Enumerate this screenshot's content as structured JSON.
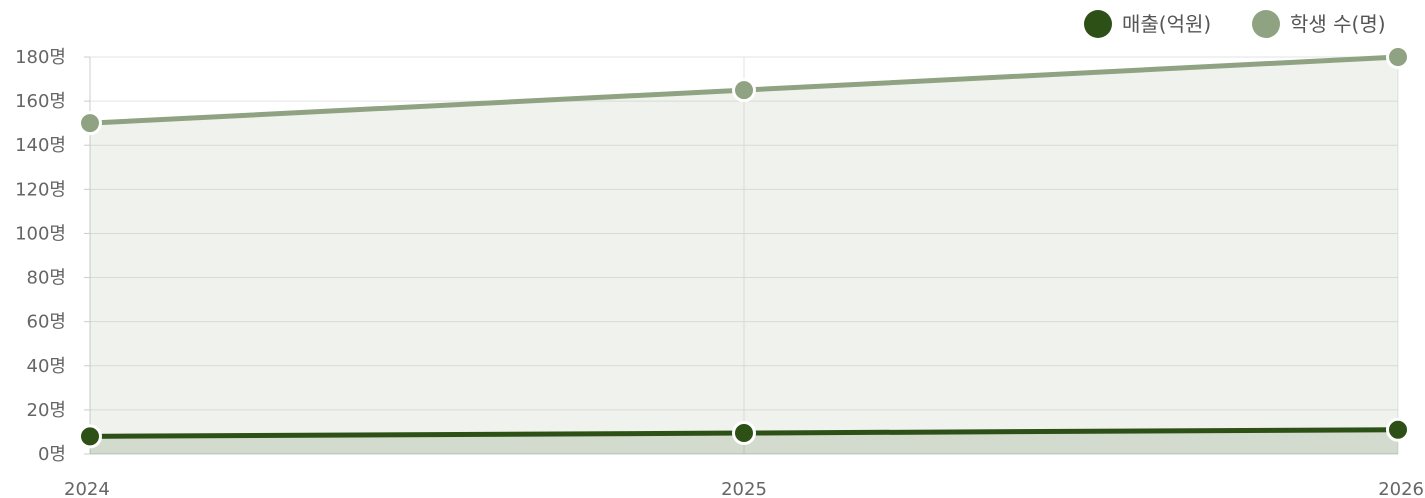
{
  "chart_data": {
    "type": "area",
    "x": [
      "2024",
      "2025",
      "2026"
    ],
    "y_ticks": [
      "0명",
      "20명",
      "40명",
      "60명",
      "80명",
      "100명",
      "120명",
      "140명",
      "160명",
      "180명"
    ],
    "ylim": [
      0,
      180
    ],
    "grid": true,
    "legend_position": "top-right",
    "series": [
      {
        "name": "매출(억원)",
        "values": [
          8,
          9.5,
          11
        ],
        "color": "#2d5016"
      },
      {
        "name": "학생 수(명)",
        "values": [
          150,
          165,
          180
        ],
        "color": "#8fa382"
      }
    ],
    "title": "",
    "xlabel": "",
    "ylabel": ""
  }
}
